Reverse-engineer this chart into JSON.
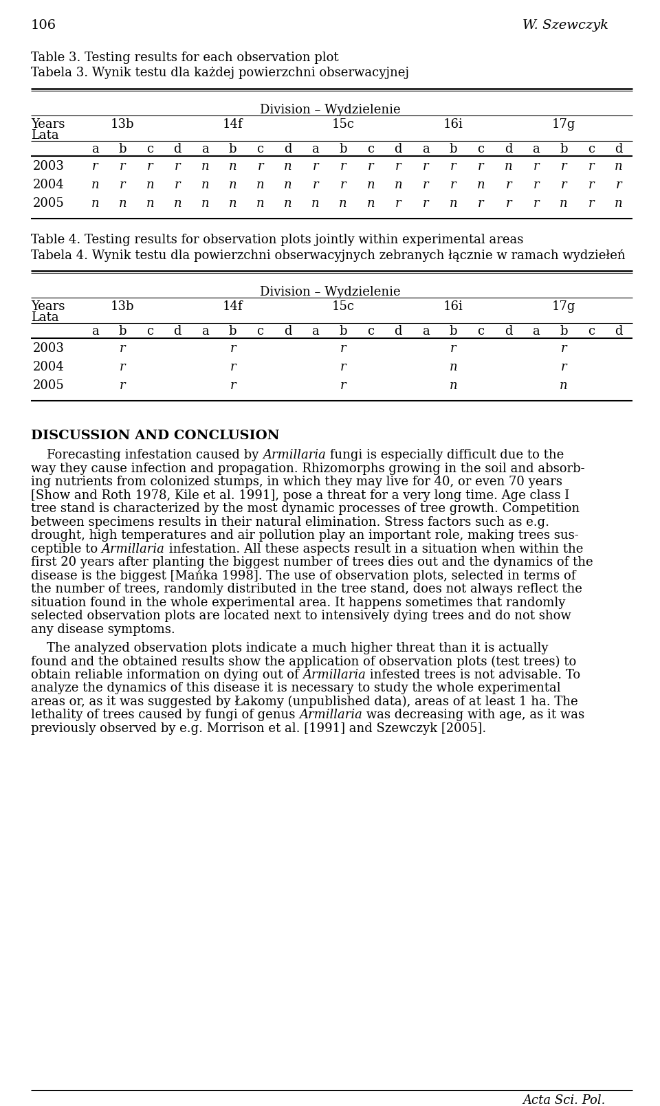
{
  "page_number": "106",
  "author": "W. Szewczyk",
  "table3_title_en": "Table 3. Testing results for each observation plot",
  "table3_title_pl": "Tabela 3. Wynik testu dla każdej powierzchni obserwacyjnej",
  "table4_title_en": "Table 4. Testing results for observation plots jointly within experimental areas",
  "table4_title_pl": "Tabela 4. Wynik testu dla powierzchni obserwacyjnych zebranych łącznie w ramach wydziełeń",
  "division_label": "Division – Wydzielenie",
  "divisions": [
    "13b",
    "14f",
    "15c",
    "16i",
    "17g"
  ],
  "subcols": [
    "a",
    "b",
    "c",
    "d"
  ],
  "years": [
    "2003",
    "2004",
    "2005"
  ],
  "table3_data": {
    "2003": [
      "r",
      "r",
      "r",
      "r",
      "n",
      "n",
      "r",
      "n",
      "r",
      "r",
      "r",
      "r",
      "r",
      "r",
      "r",
      "n",
      "r",
      "r",
      "r",
      "n"
    ],
    "2004": [
      "n",
      "r",
      "n",
      "r",
      "n",
      "n",
      "n",
      "n",
      "r",
      "r",
      "n",
      "n",
      "r",
      "r",
      "n",
      "r",
      "r",
      "r",
      "r",
      "r"
    ],
    "2005": [
      "n",
      "n",
      "n",
      "n",
      "n",
      "n",
      "n",
      "n",
      "n",
      "n",
      "n",
      "r",
      "r",
      "n",
      "r",
      "r",
      "r",
      "n",
      "r",
      "n"
    ]
  },
  "table4_data": {
    "2003": [
      "",
      "r",
      "",
      "",
      "",
      "r",
      "",
      "",
      "",
      "r",
      "",
      "",
      "",
      "r",
      "",
      "",
      "",
      "r",
      "",
      ""
    ],
    "2004": [
      "",
      "r",
      "",
      "",
      "",
      "r",
      "",
      "",
      "",
      "r",
      "",
      "",
      "",
      "n",
      "",
      "",
      "",
      "r",
      "",
      ""
    ],
    "2005": [
      "",
      "r",
      "",
      "",
      "",
      "r",
      "",
      "",
      "",
      "r",
      "",
      "",
      "",
      "n",
      "",
      "",
      "",
      "n",
      "",
      ""
    ]
  },
  "discussion_title": "DISCUSSION AND CONCLUSION",
  "p1_lines": [
    "    Forecasting infestation caused by Armillaria fungi is especially difficult due to the",
    "way they cause infection and propagation. Rhizomorphs growing in the soil and absorb-",
    "ing nutrients from colonized stumps, in which they may live for 40, or even 70 years",
    "[Show and Roth 1978, Kile et al. 1991], pose a threat for a very long time. Age class I",
    "tree stand is characterized by the most dynamic processes of tree growth. Competition",
    "between specimens results in their natural elimination. Stress factors such as e.g.",
    "drought, high temperatures and air pollution play an important role, making trees sus-",
    "ceptible to Armillaria infestation. All these aspects result in a situation when within the",
    "first 20 years after planting the biggest number of trees dies out and the dynamics of the",
    "disease is the biggest [Mańka 1998]. The use of observation plots, selected in terms of",
    "the number of trees, randomly distributed in the tree stand, does not always reflect the",
    "situation found in the whole experimental area. It happens sometimes that randomly",
    "selected observation plots are located next to intensively dying trees and do not show",
    "any disease symptoms."
  ],
  "p1_italic": {
    "0": "Armillaria",
    "7": "Armillaria"
  },
  "p2_lines": [
    "    The analyzed observation plots indicate a much higher threat than it is actually",
    "found and the obtained results show the application of observation plots (test trees) to",
    "obtain reliable information on dying out of Armillaria infested trees is not advisable. To",
    "analyze the dynamics of this disease it is necessary to study the whole experimental",
    "areas or, as it was suggested by Łakomy (unpublished data), areas of at least 1 ha. The",
    "lethality of trees caused by fungi of genus Armillaria was decreasing with age, as it was",
    "previously observed by e.g. Morrison et al. [1991] and Szewczyk [2005]."
  ],
  "p2_italic": {
    "2": "Armillaria",
    "5": "Armillaria"
  },
  "footer": "Acta Sci. Pol.",
  "bg": "#ffffff"
}
